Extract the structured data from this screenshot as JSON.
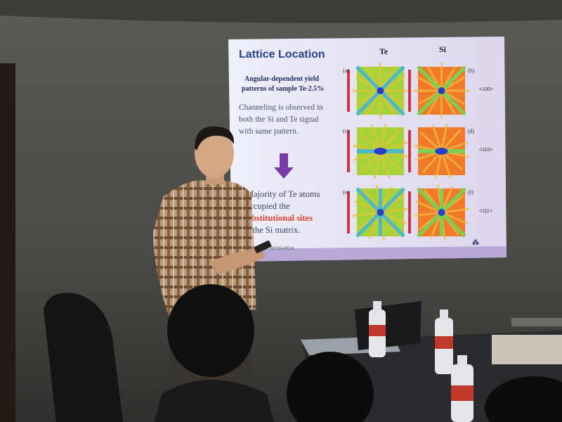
{
  "slide": {
    "title": "Lattice Location",
    "column_labels": [
      "Te",
      "Si"
    ],
    "subtitle_lines": [
      "Angular-dependent yield",
      "patterns of sample Te-2.5%"
    ],
    "body_lines": [
      "Channeling is observed in",
      "both the Si and Te signal",
      "with same pattern."
    ],
    "conclusion_lines": [
      "Majority of Te atoms",
      "occupied the"
    ],
    "highlight": "substitutional sites",
    "conclusion_end": "of the Si matrix.",
    "panel_labels": [
      "(a)",
      "(b)",
      "(c)",
      "(d)",
      "(e)",
      "(f)"
    ],
    "axis_labels": [
      "<100>",
      "<110>",
      "<111>"
    ],
    "footer": "RESEARCH"
  }
}
